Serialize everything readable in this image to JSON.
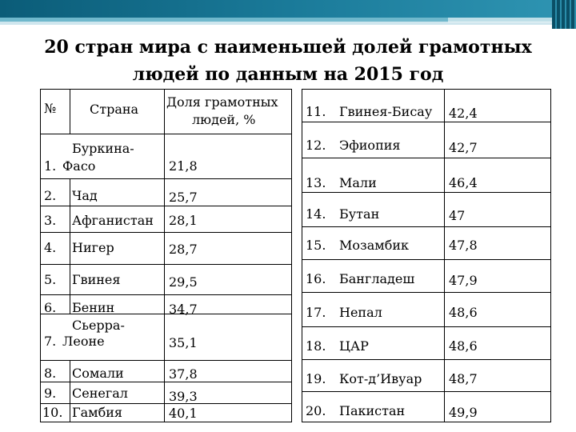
{
  "title_line1": "20 стран мира с наименьшей долей грамотных",
  "title_line2": "людей по данным на 2015 год",
  "left_table": {
    "header": {
      "num": "№",
      "country": "Страна",
      "share_line1": "Доля грамотных",
      "share_line2": "людей, %"
    },
    "rows": [
      {
        "num": "1.",
        "country": "Фасо",
        "country_prefix": "Буркина-",
        "value": "21,8"
      },
      {
        "num": "2.",
        "country": "Чад",
        "value": "25,7"
      },
      {
        "num": "3.",
        "country": "Афганистан",
        "value": "28,1"
      },
      {
        "num": "4.",
        "country": "Нигер",
        "value": "28,7"
      },
      {
        "num": "5.",
        "country": "Гвинея",
        "value": "29,5"
      },
      {
        "num": "6.",
        "country": "Бенин",
        "value": "34,7"
      },
      {
        "num": "7.",
        "country": "Леоне",
        "country_prefix": "Сьерра-",
        "value": "35,1"
      },
      {
        "num": "8.",
        "country": "Сомали",
        "value": "37,8"
      },
      {
        "num": "9.",
        "country": "Сенегал",
        "value": "39,3"
      },
      {
        "num": "10.",
        "country": "Гамбия",
        "value": "40,1"
      }
    ]
  },
  "right_table": {
    "rows": [
      {
        "num": "11.",
        "country": "Гвинея-Бисау",
        "value": "42,4"
      },
      {
        "num": "12.",
        "country": "Эфиопия",
        "value": "42,7"
      },
      {
        "num": "13.",
        "country": "Мали",
        "value": "46,4"
      },
      {
        "num": "14.",
        "country": "Бутан",
        "value": "47"
      },
      {
        "num": "15.",
        "country": "Мозамбик",
        "value": "47,8"
      },
      {
        "num": "16.",
        "country": "Бангладеш",
        "value": "47,9"
      },
      {
        "num": "17.",
        "country": "Непал",
        "value": "48,6"
      },
      {
        "num": "18.",
        "country": "ЦАР",
        "value": "48,6"
      },
      {
        "num": "19.",
        "country": "Кот-д’Ивуар",
        "value": "48,7"
      },
      {
        "num": "20.",
        "country": "Пакистан",
        "value": "49,9"
      }
    ]
  },
  "colors": {
    "header_band": "#0b5c78",
    "header_band_light": "#6fb8cc",
    "text": "#000000"
  }
}
